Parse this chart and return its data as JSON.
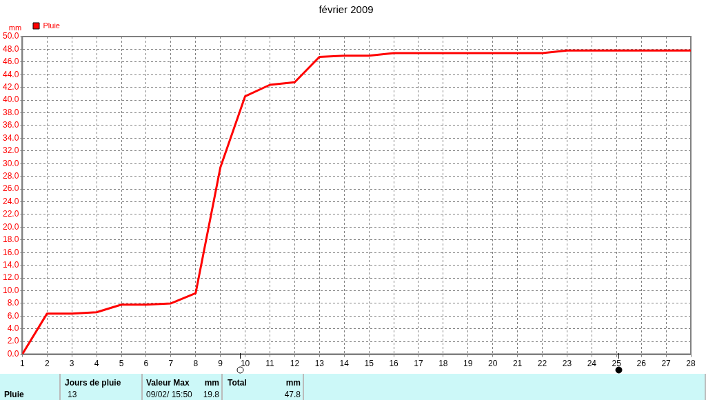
{
  "chart_data": {
    "type": "line",
    "title": "février 2009",
    "ylabel": "mm",
    "x": [
      1,
      2,
      3,
      4,
      5,
      6,
      7,
      8,
      9,
      10,
      11,
      12,
      13,
      14,
      15,
      16,
      17,
      18,
      19,
      20,
      21,
      22,
      23,
      24,
      25,
      26,
      27,
      28
    ],
    "series": [
      {
        "name": "Pluie",
        "color": "#ff0000",
        "values": [
          0.0,
          6.4,
          6.4,
          6.6,
          7.8,
          7.8,
          8.0,
          9.6,
          29.4,
          40.6,
          42.4,
          42.8,
          46.8,
          47.0,
          47.0,
          47.4,
          47.4,
          47.4,
          47.4,
          47.4,
          47.4,
          47.4,
          47.8,
          47.8,
          47.8,
          47.8,
          47.8,
          47.8
        ]
      }
    ],
    "xlim": [
      1,
      28
    ],
    "xticks": [
      1,
      2,
      3,
      4,
      5,
      6,
      7,
      8,
      9,
      10,
      11,
      12,
      13,
      14,
      15,
      16,
      17,
      18,
      19,
      20,
      21,
      22,
      23,
      24,
      25,
      26,
      27,
      28
    ],
    "ylim": [
      0,
      50
    ],
    "yticks": [
      {
        "value": 0,
        "label": "0.0"
      },
      {
        "value": 2,
        "label": "2.0"
      },
      {
        "value": 4,
        "label": "4.0"
      },
      {
        "value": 6,
        "label": "6.0"
      },
      {
        "value": 8,
        "label": "8.0"
      },
      {
        "value": 10,
        "label": "10.0"
      },
      {
        "value": 12,
        "label": "12.0"
      },
      {
        "value": 14,
        "label": "14.0"
      },
      {
        "value": 16,
        "label": "16.0"
      },
      {
        "value": 18,
        "label": "18.0"
      },
      {
        "value": 20,
        "label": "20.0"
      },
      {
        "value": 22,
        "label": "22.0"
      },
      {
        "value": 24,
        "label": "24.0"
      },
      {
        "value": 26,
        "label": "26.0"
      },
      {
        "value": 28,
        "label": "28.0"
      },
      {
        "value": 30,
        "label": "30.0"
      },
      {
        "value": 32,
        "label": "32.0"
      },
      {
        "value": 34,
        "label": "34.0"
      },
      {
        "value": 36,
        "label": "36.0"
      },
      {
        "value": 38,
        "label": "38.0"
      },
      {
        "value": 40,
        "label": "40.0"
      },
      {
        "value": 42,
        "label": "42.0"
      },
      {
        "value": 44,
        "label": "44.0"
      },
      {
        "value": 46,
        "label": "46.0"
      },
      {
        "value": 48,
        "label": "48.0"
      },
      {
        "value": 50,
        "label": "50.0"
      }
    ],
    "grid": true,
    "legend": "top left",
    "marker": "none",
    "line_style": "solid",
    "annotations": [
      "Pluie",
      "Jours de pluie",
      "13",
      "Valeur Max",
      "mm",
      "09/02/ 15:50",
      "19.8",
      "Total",
      "mm",
      "47.8"
    ]
  }
}
